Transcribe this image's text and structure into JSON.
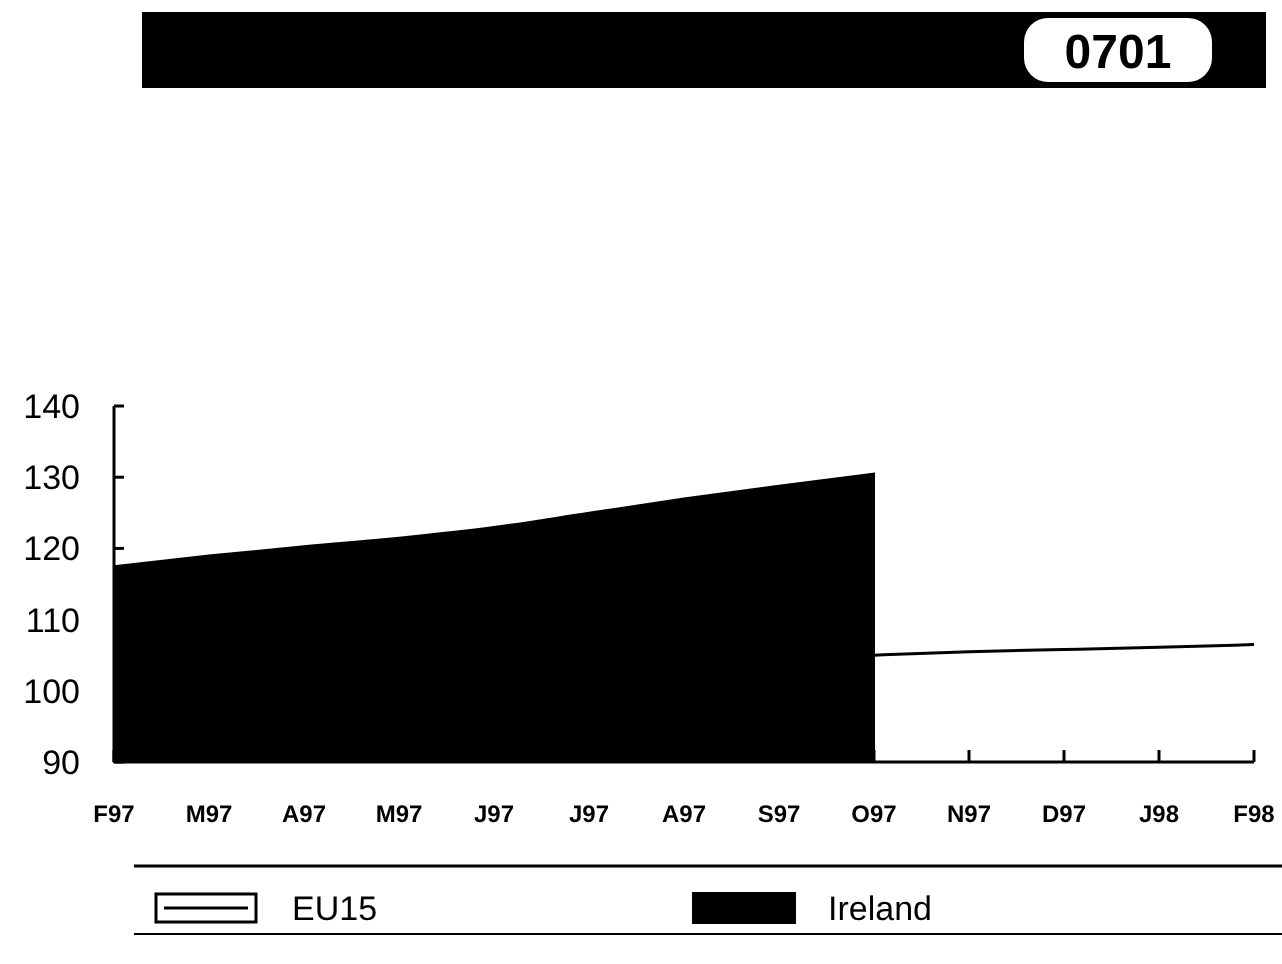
{
  "chart_data": {
    "type": "area",
    "title": "0701",
    "categories": [
      "F97",
      "M97",
      "A97",
      "M97",
      "J97",
      "J97",
      "A97",
      "S97",
      "O97",
      "N97",
      "D97",
      "J98",
      "F98"
    ],
    "series": [
      {
        "name": "EU15",
        "type": "line",
        "color": "#000000",
        "values": [
          null,
          null,
          null,
          null,
          null,
          null,
          null,
          null,
          105,
          105.5,
          105.8,
          106.1,
          106.5
        ]
      },
      {
        "name": "Ireland",
        "color": "#000000",
        "values": [
          117.5,
          119,
          120.3,
          121.5,
          123,
          125,
          127,
          128.8,
          130.5,
          null,
          null,
          null,
          null
        ]
      }
    ],
    "ylim": [
      90,
      140
    ],
    "yticks": [
      90,
      100,
      110,
      120,
      130,
      140
    ],
    "legend": "bottom",
    "grid": false
  }
}
